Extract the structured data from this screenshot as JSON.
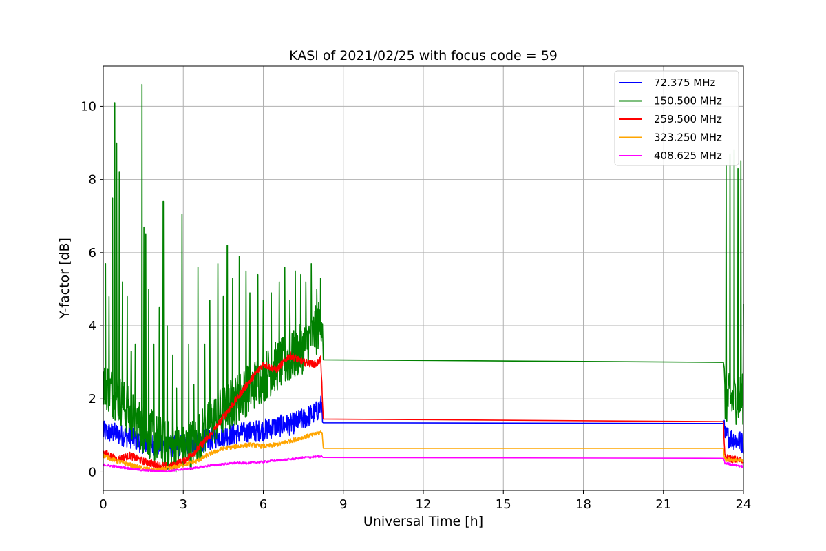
{
  "chart_data": {
    "type": "line",
    "title": "KASI of 2021/02/25 with focus code = 59",
    "xlabel": "Universal Time [h]",
    "ylabel": "Y-factor [dB]",
    "xlim": [
      0,
      24
    ],
    "ylim": [
      -0.5,
      11.1
    ],
    "xticks": [
      0,
      3,
      6,
      9,
      12,
      15,
      18,
      21,
      24
    ],
    "yticks": [
      0,
      2,
      4,
      6,
      8,
      10
    ],
    "grid": true,
    "legend_position": "top-right",
    "series": [
      {
        "name": " 72.375 MHz",
        "color": "#0000ff",
        "x": [
          0,
          0.5,
          1,
          1.5,
          2,
          2.5,
          3,
          3.5,
          4,
          4.5,
          5,
          5.5,
          6,
          6.5,
          7,
          7.5,
          8,
          8.2,
          8.25,
          23.25,
          23.3,
          24
        ],
        "y": [
          1.1,
          1.05,
          0.95,
          0.8,
          0.75,
          0.7,
          0.75,
          0.8,
          0.9,
          1.0,
          1.05,
          1.1,
          1.15,
          1.25,
          1.3,
          1.45,
          1.65,
          1.85,
          1.35,
          1.33,
          1.0,
          0.8
        ],
        "noise": 0.3
      },
      {
        "name": "150.500 MHz",
        "color": "#008000",
        "x": [
          0,
          0.3,
          0.6,
          1,
          1.5,
          2,
          2.5,
          3,
          3.5,
          4,
          4.5,
          5,
          5.5,
          6,
          6.5,
          7,
          7.5,
          8,
          8.2,
          8.25,
          23.25,
          23.3,
          24
        ],
        "y": [
          2.5,
          2.2,
          2.0,
          1.6,
          1.2,
          0.9,
          0.7,
          0.6,
          0.9,
          1.3,
          1.7,
          2.0,
          2.3,
          2.6,
          2.9,
          3.1,
          3.4,
          3.9,
          4.2,
          3.07,
          3.0,
          2.0,
          2.0
        ],
        "noise": 0.7,
        "spikes": [
          [
            0.08,
            5.7
          ],
          [
            0.22,
            4.8
          ],
          [
            0.35,
            7.5
          ],
          [
            0.43,
            10.1
          ],
          [
            0.5,
            9.0
          ],
          [
            0.6,
            8.2
          ],
          [
            0.72,
            5.2
          ],
          [
            0.9,
            4.8
          ],
          [
            1.05,
            3.3
          ],
          [
            1.2,
            3.5
          ],
          [
            1.45,
            10.6
          ],
          [
            1.52,
            6.7
          ],
          [
            1.6,
            6.5
          ],
          [
            1.7,
            5.0
          ],
          [
            1.9,
            3.5
          ],
          [
            2.1,
            4.5
          ],
          [
            2.25,
            7.4
          ],
          [
            2.4,
            4.0
          ],
          [
            2.6,
            3.2
          ],
          [
            2.75,
            2.3
          ],
          [
            2.95,
            7.05
          ],
          [
            3.2,
            3.5
          ],
          [
            3.4,
            2.4
          ],
          [
            3.55,
            5.6
          ],
          [
            3.8,
            3.5
          ],
          [
            4.0,
            4.7
          ],
          [
            4.3,
            5.7
          ],
          [
            4.5,
            4.8
          ],
          [
            4.65,
            6.2
          ],
          [
            4.85,
            5.3
          ],
          [
            5.1,
            5.9
          ],
          [
            5.35,
            5.5
          ],
          [
            5.5,
            4.9
          ],
          [
            5.8,
            5.4
          ],
          [
            6.0,
            4.7
          ],
          [
            6.3,
            4.9
          ],
          [
            6.6,
            5.2
          ],
          [
            6.8,
            5.6
          ],
          [
            7.0,
            4.7
          ],
          [
            7.2,
            5.5
          ],
          [
            7.4,
            5.4
          ],
          [
            7.6,
            5.2
          ],
          [
            7.8,
            5.7
          ],
          [
            8.0,
            5.0
          ],
          [
            8.15,
            5.3
          ],
          [
            23.35,
            8.4
          ],
          [
            23.5,
            8.7
          ],
          [
            23.65,
            8.8
          ],
          [
            23.8,
            8.3
          ],
          [
            23.9,
            8.5
          ],
          [
            24,
            4.6
          ]
        ]
      },
      {
        "name": "259.500 MHz",
        "color": "#ff0000",
        "x": [
          0,
          0.5,
          1,
          1.5,
          2,
          2.5,
          3,
          3.5,
          4,
          4.5,
          5,
          5.5,
          6,
          6.5,
          7,
          7.5,
          8,
          8.15,
          8.2,
          8.25,
          23.25,
          23.3,
          24
        ],
        "y": [
          0.55,
          0.35,
          0.45,
          0.3,
          0.2,
          0.15,
          0.3,
          0.6,
          1.0,
          1.5,
          2.0,
          2.5,
          2.95,
          2.8,
          3.2,
          3.0,
          2.95,
          3.1,
          2.3,
          1.45,
          1.38,
          0.4,
          0.3
        ],
        "noise": 0.1
      },
      {
        "name": "323.250 MHz",
        "color": "#ffa500",
        "x": [
          0,
          0.5,
          1,
          1.5,
          2,
          2.5,
          3,
          3.5,
          4,
          4.5,
          5,
          5.5,
          6,
          6.5,
          7,
          7.5,
          8,
          8.2,
          8.25,
          23.25,
          23.3,
          24
        ],
        "y": [
          0.45,
          0.3,
          0.2,
          0.1,
          0.05,
          0.1,
          0.2,
          0.3,
          0.5,
          0.65,
          0.7,
          0.75,
          0.7,
          0.75,
          0.85,
          0.95,
          1.05,
          1.1,
          0.65,
          0.65,
          0.35,
          0.3
        ],
        "noise": 0.06
      },
      {
        "name": "408.625 MHz",
        "color": "#ff00ff",
        "x": [
          0,
          0.5,
          1,
          1.5,
          2,
          2.5,
          3,
          3.5,
          4,
          4.5,
          5,
          5.5,
          6,
          6.5,
          7,
          7.5,
          8,
          8.2,
          8.25,
          23.25,
          23.3,
          24
        ],
        "y": [
          0.2,
          0.15,
          0.1,
          0.05,
          0.03,
          0.03,
          0.08,
          0.12,
          0.18,
          0.22,
          0.25,
          0.25,
          0.28,
          0.32,
          0.35,
          0.4,
          0.42,
          0.43,
          0.4,
          0.38,
          0.25,
          0.15
        ],
        "noise": 0.03
      }
    ]
  }
}
